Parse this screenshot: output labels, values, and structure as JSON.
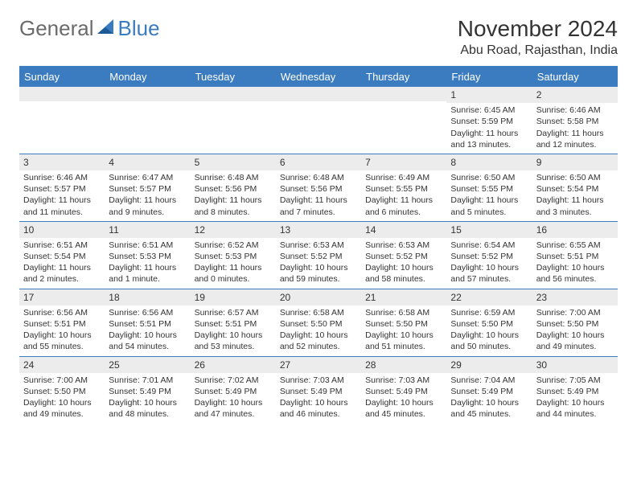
{
  "logo": {
    "part1": "General",
    "part2": "Blue"
  },
  "title": "November 2024",
  "location": "Abu Road, Rajasthan, India",
  "colors": {
    "header_bg": "#3b7bbf",
    "daynum_bg": "#ececec",
    "text": "#333333",
    "logo_gray": "#6b6b6b",
    "logo_blue": "#3b7bbf"
  },
  "weekdays": [
    "Sunday",
    "Monday",
    "Tuesday",
    "Wednesday",
    "Thursday",
    "Friday",
    "Saturday"
  ],
  "weeks": [
    [
      {
        "n": "",
        "sr": "",
        "ss": "",
        "dl": ""
      },
      {
        "n": "",
        "sr": "",
        "ss": "",
        "dl": ""
      },
      {
        "n": "",
        "sr": "",
        "ss": "",
        "dl": ""
      },
      {
        "n": "",
        "sr": "",
        "ss": "",
        "dl": ""
      },
      {
        "n": "",
        "sr": "",
        "ss": "",
        "dl": ""
      },
      {
        "n": "1",
        "sr": "Sunrise: 6:45 AM",
        "ss": "Sunset: 5:59 PM",
        "dl": "Daylight: 11 hours and 13 minutes."
      },
      {
        "n": "2",
        "sr": "Sunrise: 6:46 AM",
        "ss": "Sunset: 5:58 PM",
        "dl": "Daylight: 11 hours and 12 minutes."
      }
    ],
    [
      {
        "n": "3",
        "sr": "Sunrise: 6:46 AM",
        "ss": "Sunset: 5:57 PM",
        "dl": "Daylight: 11 hours and 11 minutes."
      },
      {
        "n": "4",
        "sr": "Sunrise: 6:47 AM",
        "ss": "Sunset: 5:57 PM",
        "dl": "Daylight: 11 hours and 9 minutes."
      },
      {
        "n": "5",
        "sr": "Sunrise: 6:48 AM",
        "ss": "Sunset: 5:56 PM",
        "dl": "Daylight: 11 hours and 8 minutes."
      },
      {
        "n": "6",
        "sr": "Sunrise: 6:48 AM",
        "ss": "Sunset: 5:56 PM",
        "dl": "Daylight: 11 hours and 7 minutes."
      },
      {
        "n": "7",
        "sr": "Sunrise: 6:49 AM",
        "ss": "Sunset: 5:55 PM",
        "dl": "Daylight: 11 hours and 6 minutes."
      },
      {
        "n": "8",
        "sr": "Sunrise: 6:50 AM",
        "ss": "Sunset: 5:55 PM",
        "dl": "Daylight: 11 hours and 5 minutes."
      },
      {
        "n": "9",
        "sr": "Sunrise: 6:50 AM",
        "ss": "Sunset: 5:54 PM",
        "dl": "Daylight: 11 hours and 3 minutes."
      }
    ],
    [
      {
        "n": "10",
        "sr": "Sunrise: 6:51 AM",
        "ss": "Sunset: 5:54 PM",
        "dl": "Daylight: 11 hours and 2 minutes."
      },
      {
        "n": "11",
        "sr": "Sunrise: 6:51 AM",
        "ss": "Sunset: 5:53 PM",
        "dl": "Daylight: 11 hours and 1 minute."
      },
      {
        "n": "12",
        "sr": "Sunrise: 6:52 AM",
        "ss": "Sunset: 5:53 PM",
        "dl": "Daylight: 11 hours and 0 minutes."
      },
      {
        "n": "13",
        "sr": "Sunrise: 6:53 AM",
        "ss": "Sunset: 5:52 PM",
        "dl": "Daylight: 10 hours and 59 minutes."
      },
      {
        "n": "14",
        "sr": "Sunrise: 6:53 AM",
        "ss": "Sunset: 5:52 PM",
        "dl": "Daylight: 10 hours and 58 minutes."
      },
      {
        "n": "15",
        "sr": "Sunrise: 6:54 AM",
        "ss": "Sunset: 5:52 PM",
        "dl": "Daylight: 10 hours and 57 minutes."
      },
      {
        "n": "16",
        "sr": "Sunrise: 6:55 AM",
        "ss": "Sunset: 5:51 PM",
        "dl": "Daylight: 10 hours and 56 minutes."
      }
    ],
    [
      {
        "n": "17",
        "sr": "Sunrise: 6:56 AM",
        "ss": "Sunset: 5:51 PM",
        "dl": "Daylight: 10 hours and 55 minutes."
      },
      {
        "n": "18",
        "sr": "Sunrise: 6:56 AM",
        "ss": "Sunset: 5:51 PM",
        "dl": "Daylight: 10 hours and 54 minutes."
      },
      {
        "n": "19",
        "sr": "Sunrise: 6:57 AM",
        "ss": "Sunset: 5:51 PM",
        "dl": "Daylight: 10 hours and 53 minutes."
      },
      {
        "n": "20",
        "sr": "Sunrise: 6:58 AM",
        "ss": "Sunset: 5:50 PM",
        "dl": "Daylight: 10 hours and 52 minutes."
      },
      {
        "n": "21",
        "sr": "Sunrise: 6:58 AM",
        "ss": "Sunset: 5:50 PM",
        "dl": "Daylight: 10 hours and 51 minutes."
      },
      {
        "n": "22",
        "sr": "Sunrise: 6:59 AM",
        "ss": "Sunset: 5:50 PM",
        "dl": "Daylight: 10 hours and 50 minutes."
      },
      {
        "n": "23",
        "sr": "Sunrise: 7:00 AM",
        "ss": "Sunset: 5:50 PM",
        "dl": "Daylight: 10 hours and 49 minutes."
      }
    ],
    [
      {
        "n": "24",
        "sr": "Sunrise: 7:00 AM",
        "ss": "Sunset: 5:50 PM",
        "dl": "Daylight: 10 hours and 49 minutes."
      },
      {
        "n": "25",
        "sr": "Sunrise: 7:01 AM",
        "ss": "Sunset: 5:49 PM",
        "dl": "Daylight: 10 hours and 48 minutes."
      },
      {
        "n": "26",
        "sr": "Sunrise: 7:02 AM",
        "ss": "Sunset: 5:49 PM",
        "dl": "Daylight: 10 hours and 47 minutes."
      },
      {
        "n": "27",
        "sr": "Sunrise: 7:03 AM",
        "ss": "Sunset: 5:49 PM",
        "dl": "Daylight: 10 hours and 46 minutes."
      },
      {
        "n": "28",
        "sr": "Sunrise: 7:03 AM",
        "ss": "Sunset: 5:49 PM",
        "dl": "Daylight: 10 hours and 45 minutes."
      },
      {
        "n": "29",
        "sr": "Sunrise: 7:04 AM",
        "ss": "Sunset: 5:49 PM",
        "dl": "Daylight: 10 hours and 45 minutes."
      },
      {
        "n": "30",
        "sr": "Sunrise: 7:05 AM",
        "ss": "Sunset: 5:49 PM",
        "dl": "Daylight: 10 hours and 44 minutes."
      }
    ]
  ]
}
